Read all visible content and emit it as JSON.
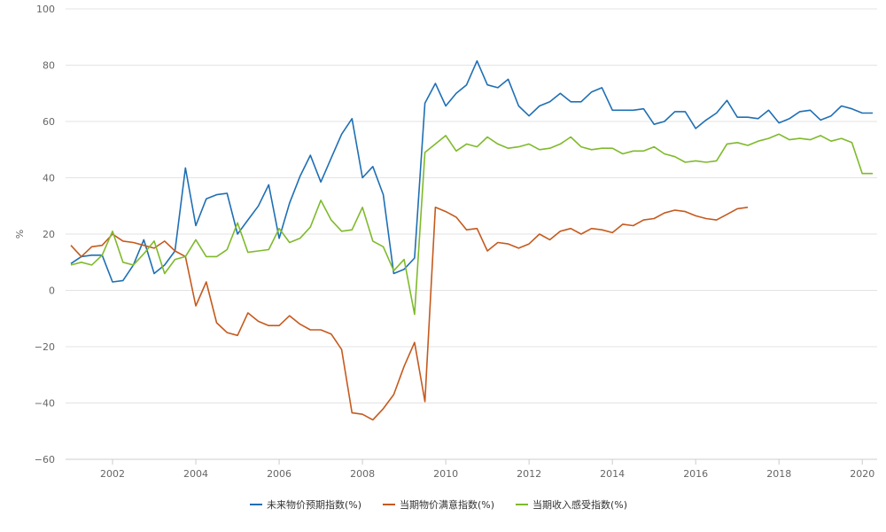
{
  "chart_data": {
    "type": "line",
    "ylabel": "%",
    "ylim": [
      -60,
      100
    ],
    "xlim": [
      2001.0,
      2020.25
    ],
    "yticks": [
      "−60",
      "−40",
      "−20",
      "0",
      "20",
      "40",
      "60",
      "80",
      "100"
    ],
    "xticks": [
      "2002",
      "2004",
      "2006",
      "2008",
      "2010",
      "2012",
      "2014",
      "2016",
      "2018",
      "2020"
    ],
    "grid": "horizontal",
    "legend_position": "bottom",
    "series": [
      {
        "name": "未来物价预期指数(%)",
        "color": "#1f6fb4",
        "x": [
          2001.0,
          2001.25,
          2001.5,
          2001.75,
          2002.0,
          2002.25,
          2002.5,
          2002.75,
          2003.0,
          2003.25,
          2003.5,
          2003.75,
          2004.0,
          2004.25,
          2004.5,
          2004.75,
          2005.0,
          2005.25,
          2005.5,
          2005.75,
          2006.0,
          2006.25,
          2006.5,
          2006.75,
          2007.0,
          2007.25,
          2007.5,
          2007.75,
          2008.0,
          2008.25,
          2008.5,
          2008.75,
          2009.0,
          2009.25,
          2009.5,
          2009.75,
          2010.0,
          2010.25,
          2010.5,
          2010.75,
          2011.0,
          2011.25,
          2011.5,
          2011.75,
          2012.0,
          2012.25,
          2012.5,
          2012.75,
          2013.0,
          2013.25,
          2013.5,
          2013.75,
          2014.0,
          2014.25,
          2014.5,
          2014.75,
          2015.0,
          2015.25,
          2015.5,
          2015.75,
          2016.0,
          2016.25,
          2016.5,
          2016.75,
          2017.0,
          2017.25,
          2017.5,
          2017.75,
          2018.0,
          2018.25,
          2018.5,
          2018.75,
          2019.0,
          2019.25,
          2019.5,
          2019.75,
          2020.0,
          2020.25
        ],
        "y": [
          9.5,
          12.0,
          12.5,
          12.5,
          3.0,
          3.5,
          9.0,
          18.0,
          6.0,
          9.0,
          14.0,
          43.5,
          23.0,
          32.5,
          34.0,
          34.5,
          20.0,
          25.0,
          30.0,
          37.5,
          18.5,
          31.0,
          40.5,
          48.0,
          38.5,
          47.0,
          55.5,
          61.0,
          40.0,
          44.0,
          34.0,
          6.0,
          7.5,
          11.5,
          66.5,
          73.5,
          65.5,
          70.0,
          73.0,
          81.5,
          73.0,
          72.0,
          75.0,
          65.5,
          62.0,
          65.5,
          67.0,
          70.0,
          67.0,
          67.0,
          70.5,
          72.0,
          64.0,
          64.0,
          64.0,
          64.5,
          59.0,
          60.0,
          63.5,
          63.5,
          57.5,
          60.5,
          63.0,
          67.5,
          61.5,
          61.5,
          61.0,
          64.0,
          59.5,
          61.0,
          63.5,
          64.0,
          60.5,
          62.0,
          65.5,
          64.5,
          63.0,
          63.0
        ]
      },
      {
        "name": "当期物价满意指数(%)",
        "color": "#c55a1e",
        "x": [
          2001.0,
          2001.25,
          2001.5,
          2001.75,
          2002.0,
          2002.25,
          2002.5,
          2002.75,
          2003.0,
          2003.25,
          2003.5,
          2003.75,
          2004.0,
          2004.25,
          2004.5,
          2004.75,
          2005.0,
          2005.25,
          2005.5,
          2005.75,
          2006.0,
          2006.25,
          2006.5,
          2006.75,
          2007.0,
          2007.25,
          2007.5,
          2007.75,
          2008.0,
          2008.25,
          2008.5,
          2008.75,
          2009.0,
          2009.25,
          2009.5,
          2009.75,
          2010.0,
          2010.25,
          2010.5,
          2010.75,
          2011.0,
          2011.25,
          2011.5,
          2011.75,
          2012.0,
          2012.25,
          2012.5,
          2012.75,
          2013.0,
          2013.25,
          2013.5,
          2013.75,
          2014.0,
          2014.25,
          2014.5,
          2014.75,
          2015.0,
          2015.25,
          2015.5,
          2015.75,
          2016.0,
          2016.25,
          2016.5,
          2016.75,
          2017.0,
          2017.25
        ],
        "y": [
          16.0,
          12.0,
          15.5,
          16.0,
          20.0,
          17.5,
          17.0,
          16.0,
          15.0,
          17.5,
          14.0,
          12.0,
          -5.5,
          3.0,
          -11.5,
          -15.0,
          -16.0,
          -8.0,
          -11.0,
          -12.5,
          -12.5,
          -9.0,
          -12.0,
          -14.0,
          -14.0,
          -15.5,
          -21.0,
          -43.5,
          -44.0,
          -46.0,
          -42.0,
          -37.0,
          -27.0,
          -18.5,
          -39.5,
          29.5,
          28.0,
          26.0,
          21.5,
          22.0,
          14.0,
          17.0,
          16.5,
          15.0,
          16.5,
          20.0,
          18.0,
          21.0,
          22.0,
          20.0,
          22.0,
          21.5,
          20.5,
          23.5,
          23.0,
          25.0,
          25.5,
          27.5,
          28.5,
          28.0,
          26.5,
          25.5,
          25.0,
          27.0,
          29.0,
          29.5
        ]
      },
      {
        "name": "当期收入感受指数(%)",
        "color": "#7fba2b",
        "x": [
          2001.0,
          2001.25,
          2001.5,
          2001.75,
          2002.0,
          2002.25,
          2002.5,
          2002.75,
          2003.0,
          2003.25,
          2003.5,
          2003.75,
          2004.0,
          2004.25,
          2004.5,
          2004.75,
          2005.0,
          2005.25,
          2005.5,
          2005.75,
          2006.0,
          2006.25,
          2006.5,
          2006.75,
          2007.0,
          2007.25,
          2007.5,
          2007.75,
          2008.0,
          2008.25,
          2008.5,
          2008.75,
          2009.0,
          2009.25,
          2009.5,
          2009.75,
          2010.0,
          2010.25,
          2010.5,
          2010.75,
          2011.0,
          2011.25,
          2011.5,
          2011.75,
          2012.0,
          2012.25,
          2012.5,
          2012.75,
          2013.0,
          2013.25,
          2013.5,
          2013.75,
          2014.0,
          2014.25,
          2014.5,
          2014.75,
          2015.0,
          2015.25,
          2015.5,
          2015.75,
          2016.0,
          2016.25,
          2016.5,
          2016.75,
          2017.0,
          2017.25,
          2017.5,
          2017.75,
          2018.0,
          2018.25,
          2018.5,
          2018.75,
          2019.0,
          2019.25,
          2019.5,
          2019.75,
          2020.0,
          2020.25
        ],
        "y": [
          9.0,
          10.0,
          9.0,
          12.5,
          21.0,
          10.0,
          9.0,
          13.0,
          17.5,
          6.0,
          11.0,
          12.0,
          18.0,
          12.0,
          12.0,
          14.5,
          24.0,
          13.5,
          14.0,
          14.5,
          22.0,
          17.0,
          18.5,
          22.5,
          32.0,
          25.0,
          21.0,
          21.5,
          29.5,
          17.5,
          15.5,
          7.0,
          11.0,
          -8.5,
          49.0,
          52.0,
          55.0,
          49.5,
          52.0,
          51.0,
          54.5,
          52.0,
          50.5,
          51.0,
          52.0,
          50.0,
          50.5,
          52.0,
          54.5,
          51.0,
          50.0,
          50.5,
          50.5,
          48.5,
          49.5,
          49.5,
          51.0,
          48.5,
          47.5,
          45.5,
          46.0,
          45.5,
          46.0,
          52.0,
          52.5,
          51.5,
          53.0,
          54.0,
          55.5,
          53.5,
          54.0,
          53.5,
          55.0,
          53.0,
          54.0,
          52.5,
          41.5,
          41.5
        ]
      }
    ]
  }
}
